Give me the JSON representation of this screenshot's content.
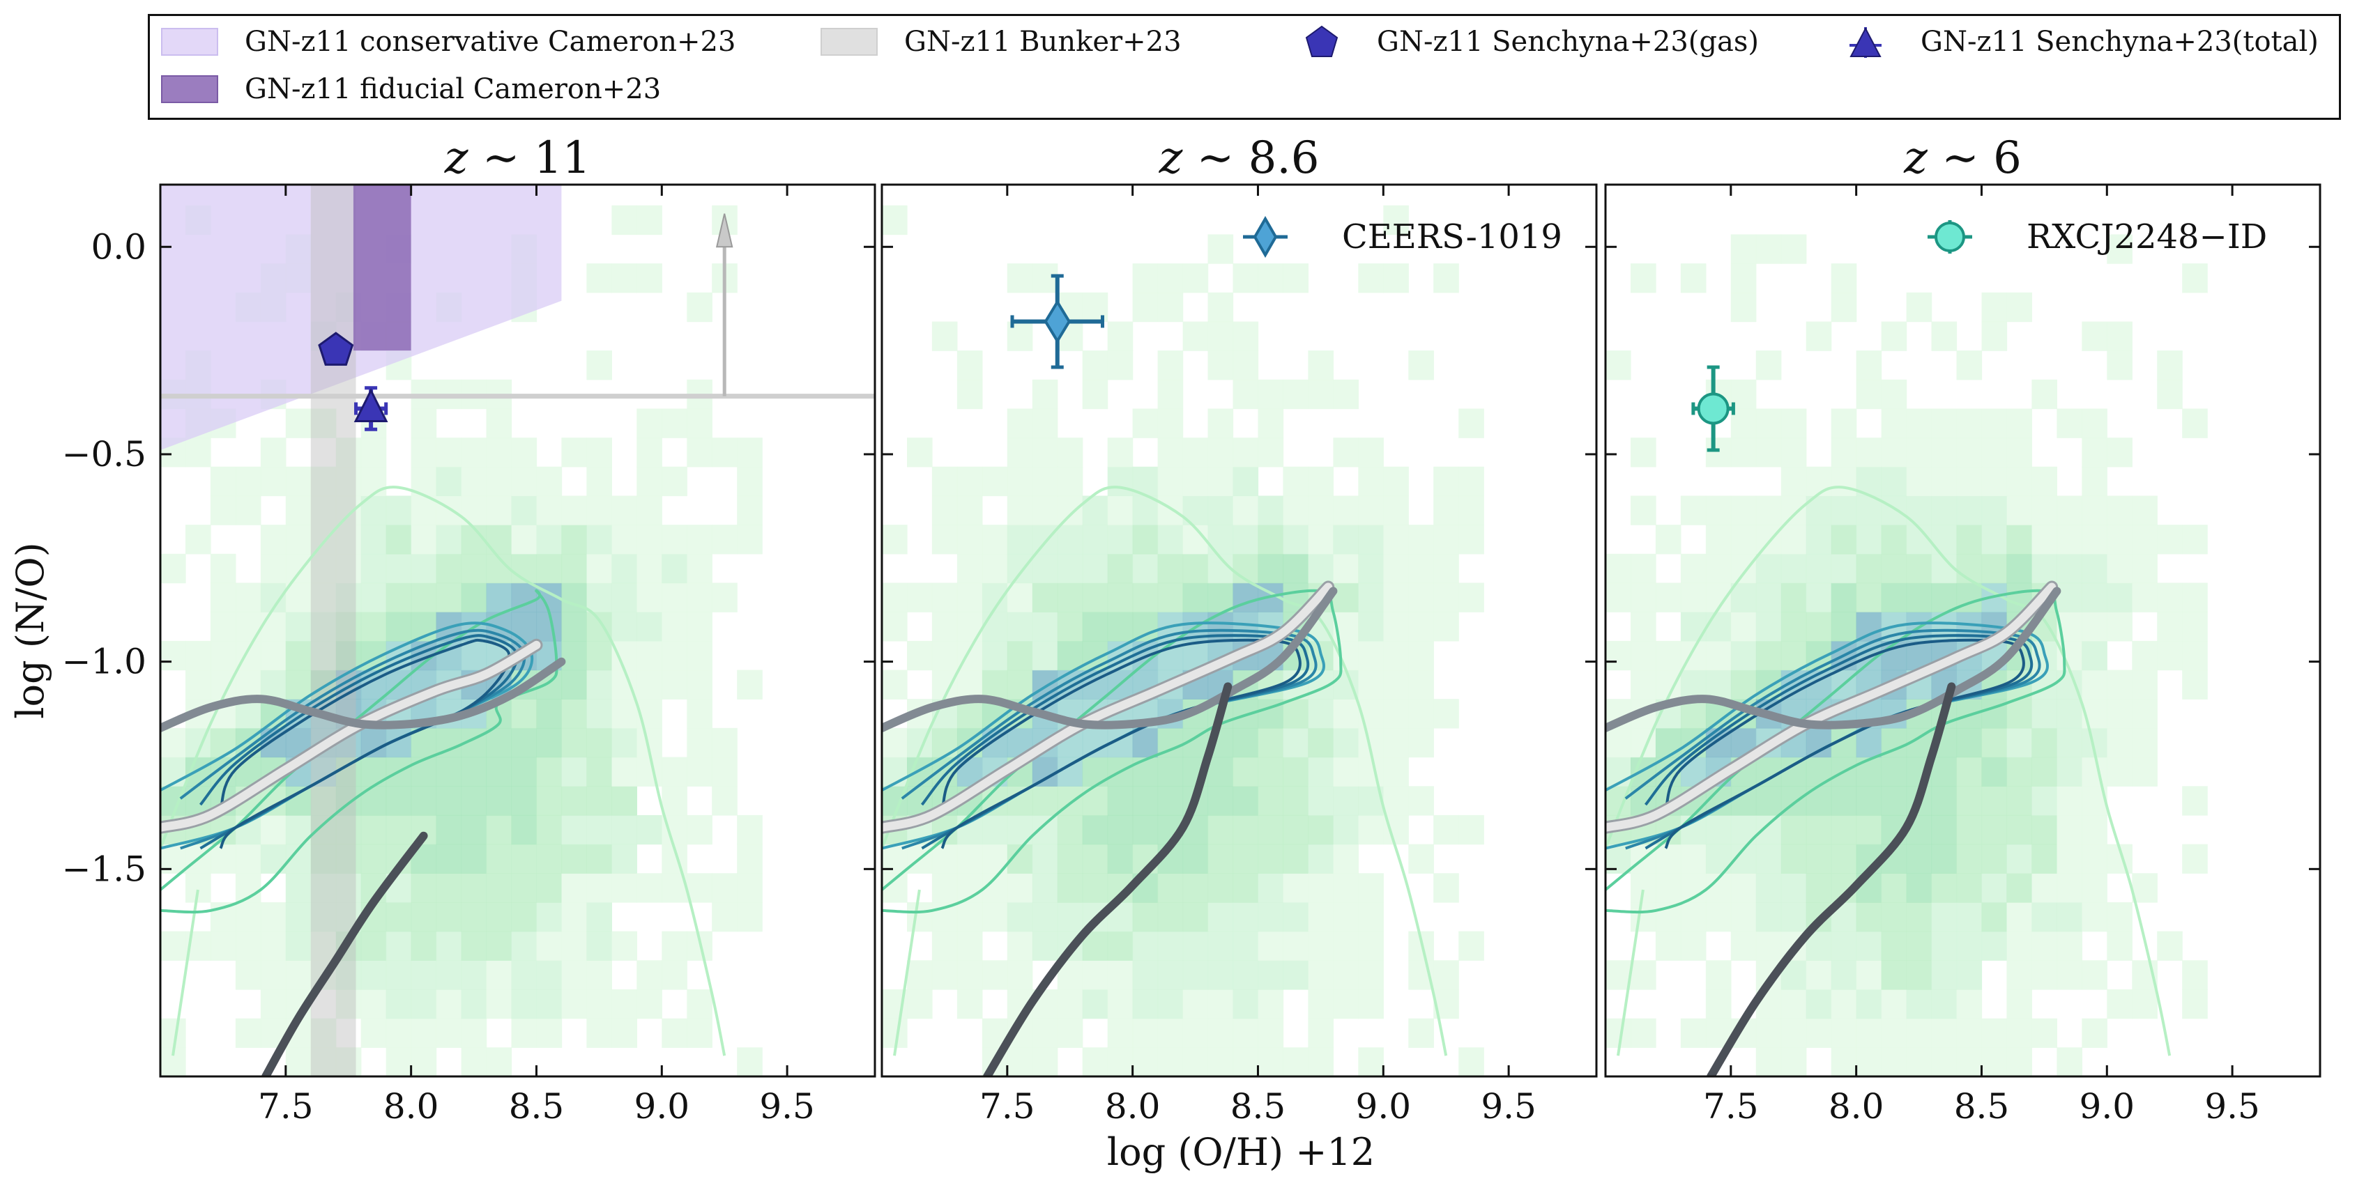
{
  "legend": {
    "items": [
      {
        "label": "GN-z11 conservative Cameron+23",
        "kind": "patch",
        "color": "#d9ccf5"
      },
      {
        "label": "GN-z11 fiducial Cameron+23",
        "kind": "patch",
        "color": "#9b7dbf"
      },
      {
        "label": "GN-z11 Bunker+23",
        "kind": "patch",
        "color": "#d9d9d9"
      },
      {
        "label": "GN-z11 Senchyna+23(gas)",
        "kind": "pentagon",
        "color": "#3a35b5"
      },
      {
        "label": "GN-z11 Senchyna+23(total)",
        "kind": "triangle",
        "color": "#3a35b5"
      }
    ]
  },
  "shared_axes": {
    "xlabel": "log (O/H) +12",
    "ylabel": "log (N/O)",
    "xlim": [
      7.0,
      9.85
    ],
    "ylim": [
      -2.0,
      0.15
    ],
    "xticks": [
      "7.5",
      "8.0",
      "8.5",
      "9.0",
      "9.5"
    ],
    "yticks": [
      "0.0",
      "−0.5",
      "−1.0",
      "−1.5"
    ]
  },
  "chart_data": [
    {
      "type": "scatter",
      "title_prefix": "z",
      "title_suffix": "∼ 11",
      "series": [
        {
          "name": "GN-z11 Senchyna+23(gas)",
          "marker": "pentagon",
          "color": "#3a35b5",
          "x": 7.7,
          "y": -0.25
        },
        {
          "name": "GN-z11 Senchyna+23(total)",
          "marker": "triangle",
          "color": "#3a35b5",
          "x": 7.84,
          "y": -0.39,
          "yerr": 0.05,
          "xerr": 0.06
        }
      ],
      "regions": {
        "conservative_cameron23": {
          "x": [
            7.0,
            8.6
          ],
          "y_top": 0.15,
          "y_bottom_left": -0.49,
          "y_bottom_right": -0.13,
          "color": "#d9ccf5"
        },
        "fiducial_cameron23": {
          "x": [
            7.77,
            8.0
          ],
          "y": [
            -0.25,
            0.15
          ],
          "color": "#9b7dbf"
        },
        "bunker23_vertical": {
          "x": [
            7.6,
            7.78
          ],
          "color": "#d9d9d9"
        },
        "bunker23_lower_limit": {
          "y": -0.36,
          "arrow_x": 9.25,
          "color": "#c8c8c8"
        }
      }
    },
    {
      "type": "scatter",
      "title_prefix": "z",
      "title_suffix": "∼ 8.6",
      "legend_label": "CEERS-1019",
      "series": [
        {
          "name": "CEERS-1019",
          "marker": "diamond",
          "color": "#4ea3d6",
          "edge": "#1f6a96",
          "x": 7.7,
          "y": -0.18,
          "xerr": 0.18,
          "yerr": 0.11
        }
      ]
    },
    {
      "type": "scatter",
      "title_prefix": "z",
      "title_suffix": "∼ 6",
      "legend_label": "RXCJ2248−ID",
      "series": [
        {
          "name": "RXCJ2248−ID",
          "marker": "circle",
          "color": "#6ee8d2",
          "edge": "#1c9683",
          "x": 7.43,
          "y": -0.39,
          "xerr": 0.08,
          "yerr": 0.1
        }
      ]
    }
  ],
  "model_tracks": {
    "track_a_upper": {
      "color": "#828a93",
      "points": [
        [
          7.0,
          -1.16
        ],
        [
          7.2,
          -1.11
        ],
        [
          7.4,
          -1.09
        ],
        [
          7.6,
          -1.12
        ],
        [
          7.8,
          -1.15
        ],
        [
          8.0,
          -1.15
        ],
        [
          8.2,
          -1.13
        ],
        [
          8.4,
          -1.08
        ],
        [
          8.6,
          -1.0
        ]
      ]
    },
    "track_b_upper": {
      "color": "#828a93",
      "points": [
        [
          7.0,
          -1.16
        ],
        [
          7.2,
          -1.11
        ],
        [
          7.4,
          -1.09
        ],
        [
          7.6,
          -1.12
        ],
        [
          7.8,
          -1.15
        ],
        [
          8.0,
          -1.15
        ],
        [
          8.2,
          -1.13
        ],
        [
          8.4,
          -1.07
        ],
        [
          8.6,
          -0.99
        ],
        [
          8.8,
          -0.83
        ]
      ]
    },
    "white_band": {
      "color": "#e6e6e6",
      "panel1": [
        [
          7.0,
          -1.4
        ],
        [
          7.2,
          -1.37
        ],
        [
          7.5,
          -1.26
        ],
        [
          7.8,
          -1.15
        ],
        [
          8.1,
          -1.07
        ],
        [
          8.3,
          -1.03
        ],
        [
          8.5,
          -0.96
        ]
      ],
      "panel23": [
        [
          7.0,
          -1.4
        ],
        [
          7.2,
          -1.37
        ],
        [
          7.5,
          -1.26
        ],
        [
          7.8,
          -1.15
        ],
        [
          8.1,
          -1.07
        ],
        [
          8.4,
          -0.99
        ],
        [
          8.6,
          -0.93
        ],
        [
          8.78,
          -0.82
        ]
      ]
    },
    "dark_lower_p1": {
      "color": "#4b5058",
      "points": [
        [
          7.42,
          -2.0
        ],
        [
          7.55,
          -1.86
        ],
        [
          7.7,
          -1.72
        ],
        [
          7.85,
          -1.58
        ],
        [
          8.05,
          -1.42
        ]
      ]
    },
    "dark_lower_p23": {
      "color": "#4b5058",
      "points": [
        [
          7.42,
          -2.0
        ],
        [
          7.6,
          -1.82
        ],
        [
          7.8,
          -1.66
        ],
        [
          8.0,
          -1.54
        ],
        [
          8.2,
          -1.4
        ],
        [
          8.3,
          -1.23
        ],
        [
          8.38,
          -1.06
        ]
      ]
    }
  }
}
